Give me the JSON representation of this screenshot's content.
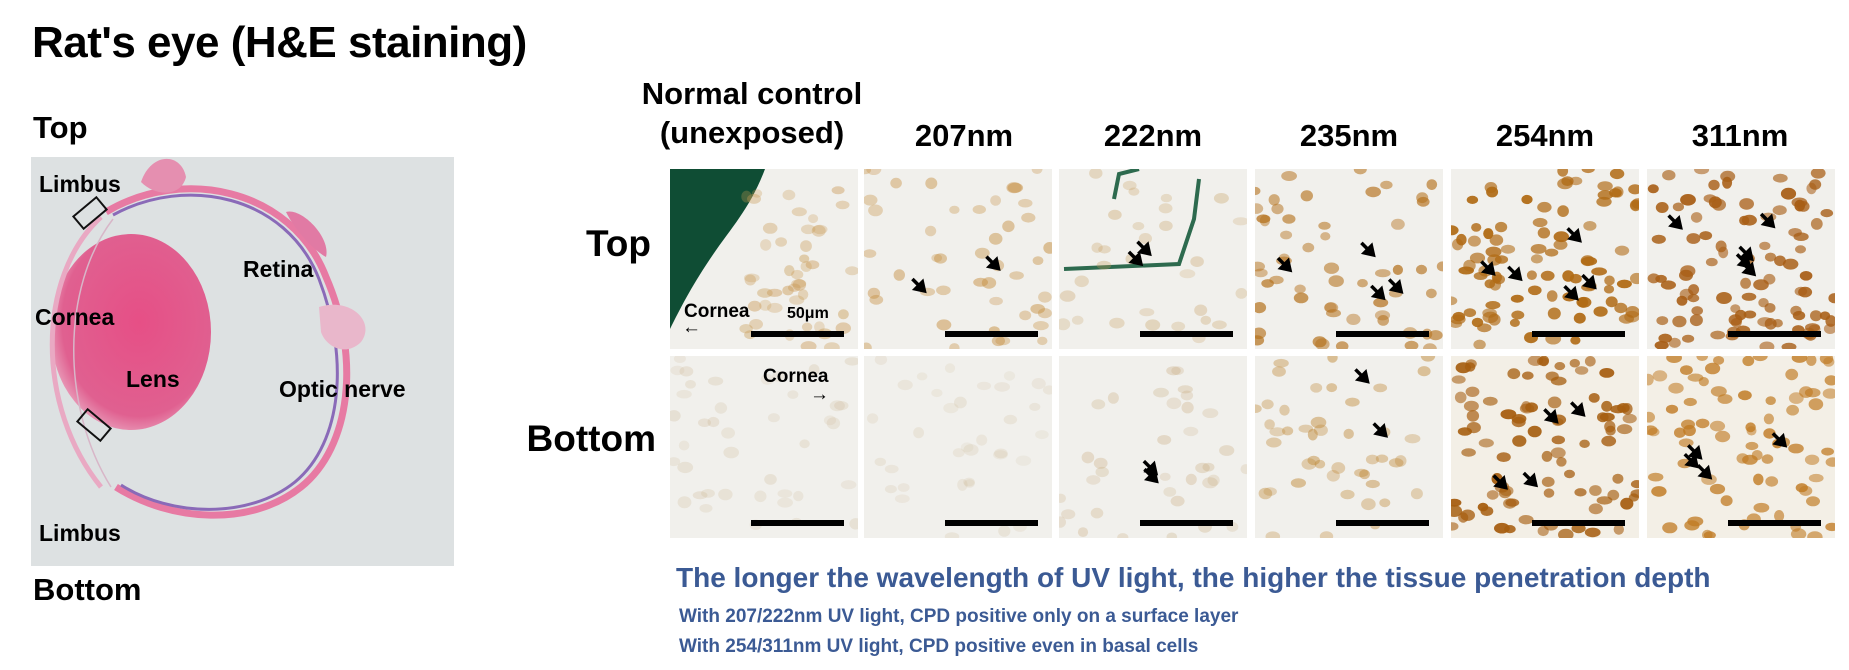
{
  "title": "Rat's eye (H&E staining)",
  "eye_overview": {
    "top_label": "Top",
    "bottom_label": "Bottom",
    "labels": {
      "limbus_top": "Limbus",
      "retina": "Retina",
      "cornea": "Cornea",
      "lens": "Lens",
      "optic_nerve": "Optic nerve",
      "limbus_bottom": "Limbus"
    },
    "colors": {
      "stain_pink": "#e0507f",
      "retina_purple": "#8a6ab8",
      "background": "#dde1e2"
    }
  },
  "grid": {
    "control_header_line1": "Normal control",
    "control_header_line2": "(unexposed)",
    "columns": [
      "207nm",
      "222nm",
      "235nm",
      "254nm",
      "311nm"
    ],
    "rows": [
      "Top",
      "Bottom"
    ],
    "panel_labels": {
      "top_control_cornea": "Cornea",
      "top_control_scale": "50μm",
      "bottom_control_cornea": "Cornea"
    },
    "colors": {
      "nucleus_brown": "#b87418",
      "stain_green": "#0f4d34"
    }
  },
  "notes": {
    "headline": "The longer the wavelength of UV light, the higher the tissue penetration depth",
    "line1": "With 207/222nm UV light, CPD positive only on a surface layer",
    "line2": "With 254/311nm UV light, CPD positive even in basal cells",
    "color": "#3b5a94"
  }
}
